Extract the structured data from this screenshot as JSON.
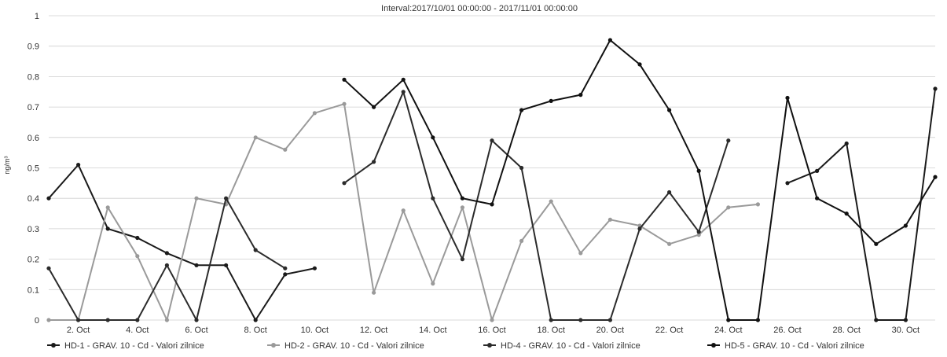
{
  "chart_data": {
    "type": "line",
    "title": "Interval:2017/10/01 00:00:00 - 2017/11/01 00:00:00",
    "ylabel": "ng/m³",
    "xlabel": "",
    "ylim": [
      0,
      1
    ],
    "y_ticks": [
      "0",
      "0.1",
      "0.2",
      "0.3",
      "0.4",
      "0.5",
      "0.6",
      "0.7",
      "0.8",
      "0.9",
      "1"
    ],
    "x": [
      1,
      2,
      3,
      4,
      5,
      6,
      7,
      8,
      9,
      10,
      11,
      12,
      13,
      14,
      15,
      16,
      17,
      18,
      19,
      20,
      21,
      22,
      23,
      24,
      25,
      26,
      27,
      28,
      29,
      30,
      31
    ],
    "x_tick_labels": [
      "2. Oct",
      "4. Oct",
      "6. Oct",
      "8. Oct",
      "10. Oct",
      "12. Oct",
      "14. Oct",
      "16. Oct",
      "18. Oct",
      "20. Oct",
      "22. Oct",
      "24. Oct",
      "26. Oct",
      "28. Oct",
      "30. Oct"
    ],
    "x_tick_days": [
      2,
      4,
      6,
      8,
      10,
      12,
      14,
      16,
      18,
      20,
      22,
      24,
      26,
      28,
      30
    ],
    "grid": true,
    "legend_position": "bottom",
    "series": [
      {
        "name": "HD-1 - GRAV. 10 - Cd - Valori zilnice",
        "color": "#1a1a1a",
        "values": [
          0.4,
          0.51,
          0.3,
          0.27,
          0.22,
          0.18,
          0.18,
          0.0,
          0.15,
          0.17,
          null,
          null,
          null,
          null,
          null,
          null,
          null,
          null,
          null,
          null,
          null,
          null,
          null,
          null,
          null,
          0.45,
          0.49,
          0.58,
          0.0,
          0.0,
          0.76
        ]
      },
      {
        "name": "HD-2 - GRAV. 10 - Cd - Valori zilnice",
        "color": "#9a9a9a",
        "values": [
          0.0,
          0.0,
          0.37,
          0.21,
          0.0,
          0.4,
          0.38,
          0.6,
          0.56,
          0.68,
          0.71,
          0.09,
          0.36,
          0.12,
          0.37,
          0.0,
          0.26,
          0.39,
          0.22,
          0.33,
          0.31,
          0.25,
          0.28,
          0.37,
          0.38,
          null,
          null,
          null,
          null,
          null,
          null
        ]
      },
      {
        "name": "HD-4 - GRAV. 10 - Cd - Valori zilnice",
        "color": "#2b2b2b",
        "values": [
          0.17,
          0.0,
          0.0,
          0.0,
          0.18,
          0.0,
          0.4,
          0.23,
          0.17,
          null,
          0.45,
          0.52,
          0.75,
          0.4,
          0.2,
          0.59,
          0.5,
          0.0,
          0.0,
          0.0,
          0.3,
          0.42,
          0.29,
          0.59,
          null,
          null,
          null,
          null,
          null,
          null,
          null
        ]
      },
      {
        "name": "HD-5 - GRAV. 10 - Cd - Valori zilnice",
        "color": "#111111",
        "values": [
          null,
          null,
          null,
          null,
          null,
          null,
          null,
          null,
          null,
          null,
          0.79,
          0.7,
          0.79,
          0.6,
          0.4,
          0.38,
          0.69,
          0.72,
          0.74,
          0.92,
          0.84,
          0.69,
          0.49,
          0.0,
          0.0,
          0.73,
          0.4,
          0.35,
          0.25,
          0.31,
          0.47
        ]
      }
    ]
  }
}
